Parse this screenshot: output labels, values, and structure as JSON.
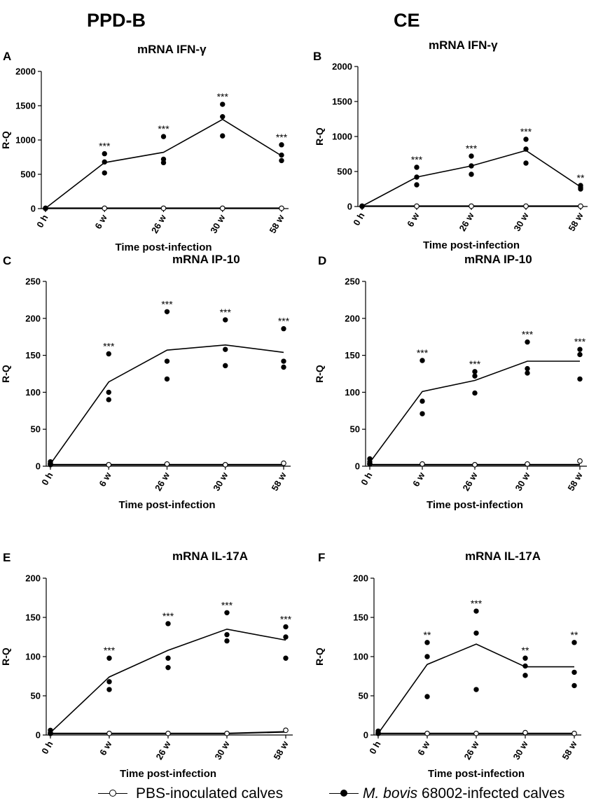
{
  "column_headers": [
    "PPD-B",
    "CE"
  ],
  "legend": {
    "pbs": "PBS-inoculated calves",
    "infected_species": "M. bovis",
    "infected_rest": "68002-infected calves"
  },
  "chart_data": [
    {
      "type": "scatter",
      "panel": "A",
      "title": "mRNA IFN-γ",
      "ylabel": "R-Q",
      "xlabel": "Time post-infection",
      "categories": [
        "0 h",
        "6 w",
        "26 w",
        "30 w",
        "58 w"
      ],
      "ylim": [
        0,
        2000
      ],
      "yticks": [
        0,
        500,
        1000,
        1500,
        2000
      ],
      "series": [
        {
          "name": "M. bovis 68002-infected calves",
          "filled": true,
          "points": [
            [
              5,
              2,
              3
            ],
            [
              800,
              680,
              520
            ],
            [
              1050,
              720,
              670
            ],
            [
              1520,
              1340,
              1060
            ],
            [
              930,
              780,
              700
            ]
          ],
          "line": [
            5,
            670,
            820,
            1300,
            770
          ]
        },
        {
          "name": "PBS-inoculated calves",
          "filled": false,
          "points": [
            [
              5
            ],
            [
              5
            ],
            [
              5
            ],
            [
              5
            ],
            [
              5
            ]
          ],
          "line": [
            5,
            5,
            5,
            5,
            5
          ]
        }
      ],
      "significance": [
        "",
        "***",
        "***",
        "***",
        "***"
      ]
    },
    {
      "type": "scatter",
      "panel": "B",
      "title": "mRNA IFN-γ",
      "ylabel": "R-Q",
      "xlabel": "Time post-infection",
      "categories": [
        "0 h",
        "6 w",
        "26 w",
        "30 w",
        "58 w"
      ],
      "ylim": [
        0,
        2000
      ],
      "yticks": [
        0,
        500,
        1000,
        1500,
        2000
      ],
      "series": [
        {
          "name": "M. bovis 68002-infected calves",
          "filled": true,
          "points": [
            [
              5,
              2,
              3
            ],
            [
              560,
              420,
              310
            ],
            [
              720,
              580,
              460
            ],
            [
              960,
              820,
              620
            ],
            [
              300,
              270,
              250
            ]
          ],
          "line": [
            5,
            420,
            580,
            800,
            280
          ]
        },
        {
          "name": "PBS-inoculated calves",
          "filled": false,
          "points": [
            [
              5
            ],
            [
              5
            ],
            [
              5
            ],
            [
              5
            ],
            [
              5
            ]
          ],
          "line": [
            5,
            5,
            5,
            5,
            5
          ]
        }
      ],
      "significance": [
        "",
        "***",
        "***",
        "***",
        "**"
      ]
    },
    {
      "type": "scatter",
      "panel": "C",
      "title": "mRNA IP-10",
      "ylabel": "R-Q",
      "xlabel": "Time post-infection",
      "categories": [
        "0 h",
        "6 w",
        "26 w",
        "30 w",
        "58 w"
      ],
      "ylim": [
        0,
        250
      ],
      "yticks": [
        0,
        50,
        100,
        150,
        200,
        250
      ],
      "series": [
        {
          "name": "M. bovis 68002-infected calves",
          "filled": true,
          "points": [
            [
              6,
              3,
              2
            ],
            [
              152,
              100,
              90
            ],
            [
              209,
              142,
              118
            ],
            [
              198,
              158,
              136
            ],
            [
              186,
              142,
              134
            ]
          ],
          "line": [
            3,
            114,
            157,
            164,
            154
          ]
        },
        {
          "name": "PBS-inoculated calves",
          "filled": false,
          "points": [
            [
              3
            ],
            [
              2
            ],
            [
              3
            ],
            [
              2
            ],
            [
              4
            ]
          ],
          "line": [
            2,
            2,
            2,
            2,
            2
          ]
        }
      ],
      "significance": [
        "",
        "***",
        "***",
        "***",
        "***"
      ]
    },
    {
      "type": "scatter",
      "panel": "D",
      "title": "mRNA IP-10",
      "ylabel": "R-Q",
      "xlabel": "Time post-infection",
      "categories": [
        "0 h",
        "6 w",
        "26 w",
        "30 w",
        "58 w"
      ],
      "ylim": [
        0,
        250
      ],
      "yticks": [
        0,
        50,
        100,
        150,
        200,
        250
      ],
      "series": [
        {
          "name": "M. bovis 68002-infected calves",
          "filled": true,
          "points": [
            [
              10,
              6,
              3
            ],
            [
              143,
              88,
              71
            ],
            [
              128,
              122,
              99
            ],
            [
              168,
              132,
              126
            ],
            [
              158,
              151,
              118
            ]
          ],
          "line": [
            5,
            101,
            116,
            142,
            142
          ]
        },
        {
          "name": "PBS-inoculated calves",
          "filled": false,
          "points": [
            [
              3
            ],
            [
              3
            ],
            [
              2
            ],
            [
              3
            ],
            [
              7
            ]
          ],
          "line": [
            2,
            2,
            2,
            2,
            2
          ]
        }
      ],
      "significance": [
        "",
        "***",
        "***",
        "***",
        "***"
      ]
    },
    {
      "type": "scatter",
      "panel": "E",
      "title": "mRNA IL-17A",
      "ylabel": "R-Q",
      "xlabel": "Time post-infection",
      "categories": [
        "0 h",
        "6 w",
        "26 w",
        "30 w",
        "58 w"
      ],
      "ylim": [
        0,
        200
      ],
      "yticks": [
        0,
        50,
        100,
        150,
        200
      ],
      "series": [
        {
          "name": "M. bovis 68002-infected calves",
          "filled": true,
          "points": [
            [
              6,
              3,
              2
            ],
            [
              98,
              68,
              58
            ],
            [
              142,
              98,
              86
            ],
            [
              156,
              128,
              120
            ],
            [
              138,
              125,
              98
            ]
          ],
          "line": [
            3,
            74,
            108,
            135,
            121
          ]
        },
        {
          "name": "PBS-inoculated calves",
          "filled": false,
          "points": [
            [
              2
            ],
            [
              2
            ],
            [
              2
            ],
            [
              2
            ],
            [
              6
            ]
          ],
          "line": [
            2,
            2,
            2,
            2,
            4
          ]
        }
      ],
      "significance": [
        "",
        "***",
        "***",
        "***",
        "***"
      ]
    },
    {
      "type": "scatter",
      "panel": "F",
      "title": "mRNA IL-17A",
      "ylabel": "R-Q",
      "xlabel": "Time post-infection",
      "categories": [
        "0 h",
        "6 w",
        "26 w",
        "30 w",
        "58 w"
      ],
      "ylim": [
        0,
        200
      ],
      "yticks": [
        0,
        50,
        100,
        150,
        200
      ],
      "series": [
        {
          "name": "M. bovis 68002-infected calves",
          "filled": true,
          "points": [
            [
              5,
              3,
              2
            ],
            [
              118,
              100,
              49
            ],
            [
              158,
              130,
              58
            ],
            [
              98,
              88,
              76
            ],
            [
              118,
              80,
              63
            ]
          ],
          "line": [
            2,
            90,
            116,
            87,
            87
          ]
        },
        {
          "name": "PBS-inoculated calves",
          "filled": false,
          "points": [
            [
              2
            ],
            [
              2
            ],
            [
              2
            ],
            [
              3
            ],
            [
              2
            ]
          ],
          "line": [
            2,
            2,
            2,
            2,
            2
          ]
        }
      ],
      "significance": [
        "",
        "**",
        "***",
        "**",
        "**"
      ]
    }
  ]
}
